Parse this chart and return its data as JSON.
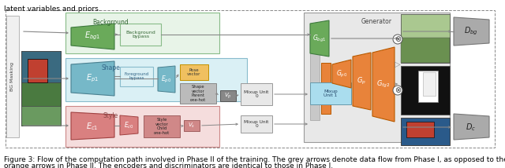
{
  "bg_color": "#ffffff",
  "text_color": "#000000",
  "caption_line1": "Figure 3: Flow of the computation path involved in Phase II of the training. The grey arrows denote data flow from Phase I, as opposed to the",
  "caption_line2": "orange arrows in Phase II. The encoders and discriminators are identical to those in Phase I.",
  "fig_width": 6.4,
  "fig_height": 2.14,
  "dpi": 100,
  "caption_fontsize": 6.5,
  "top_text": "latent variables and priors.",
  "colors": {
    "encoder_green": "#6aaa5a",
    "encoder_green_edge": "#3d7a3d",
    "encoder_blue": "#76b8c8",
    "encoder_blue_edge": "#4a8090",
    "encoder_pink": "#d98080",
    "encoder_pink_edge": "#a04040",
    "bg_region": "#e8f4e8",
    "bg_region_edge": "#88bb88",
    "shape_region": "#daf0f5",
    "shape_region_edge": "#88bbcc",
    "style_region": "#f5dddd",
    "style_region_edge": "#cc8888",
    "orange_box": "#e8833a",
    "orange_box_edge": "#b85a00",
    "gen_region": "#e8e8e8",
    "gen_region_edge": "#999999",
    "gray_block": "#b0b0b0",
    "gray_block_edge": "#888888",
    "light_blue": "#aaddee",
    "light_blue_edge": "#6699aa",
    "mixup_box": "#e8e8e8",
    "mixup_box_edge": "#999999",
    "vp_vs_box": "#888888",
    "disc_gray": "#aaaaaa",
    "disc_gray_edge": "#777777",
    "pose_yellow": "#f0c060",
    "pose_yellow_edge": "#c09000",
    "shape_vec_box": "#bbbbbb",
    "style_vec_box": "#d08888",
    "style_vec_edge": "#a06060",
    "dashed_border": "#888888"
  }
}
